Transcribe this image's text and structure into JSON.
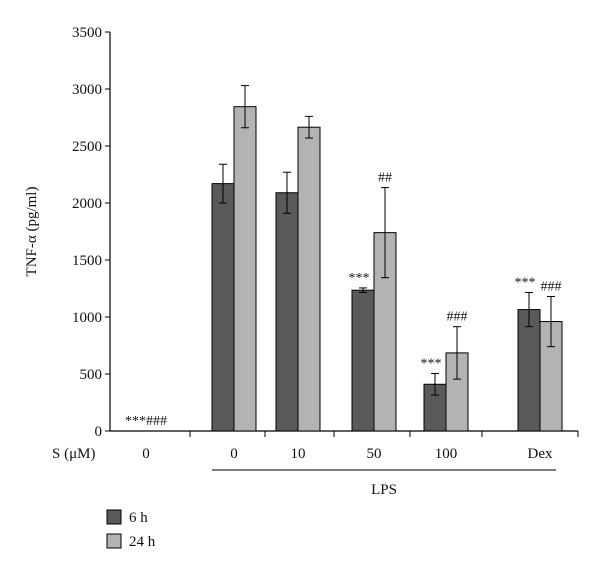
{
  "chart_data": {
    "type": "bar",
    "ylabel": "TNF-α (pg/ml)",
    "ylim": [
      0,
      3500
    ],
    "yticks": [
      0,
      500,
      1000,
      1500,
      2000,
      2500,
      3000,
      3500
    ],
    "x_prefix": "S (μM)",
    "categories": [
      "0",
      "0",
      "10",
      "50",
      "100",
      "Dex"
    ],
    "group_label": "LPS",
    "series": [
      {
        "name": "6 h",
        "color": "#5a5a5a",
        "values": [
          0,
          2170,
          2090,
          1235,
          410,
          1065
        ],
        "errors": [
          0,
          170,
          180,
          20,
          95,
          150
        ]
      },
      {
        "name": "24 h",
        "color": "#b3b3b3",
        "values": [
          0,
          2845,
          2665,
          1740,
          685,
          960
        ],
        "errors": [
          0,
          185,
          95,
          395,
          230,
          220
        ]
      }
    ],
    "annotations": [
      {
        "category_index": 0,
        "series": null,
        "text": "***###"
      },
      {
        "category_index": 3,
        "series": 0,
        "text": "***"
      },
      {
        "category_index": 3,
        "series": 1,
        "text": "##"
      },
      {
        "category_index": 4,
        "series": 0,
        "text": "***"
      },
      {
        "category_index": 4,
        "series": 1,
        "text": "###"
      },
      {
        "category_index": 5,
        "series": 0,
        "text": "***"
      },
      {
        "category_index": 5,
        "series": 1,
        "text": "###"
      }
    ],
    "grid": false,
    "legend_position": "bottom-left"
  }
}
